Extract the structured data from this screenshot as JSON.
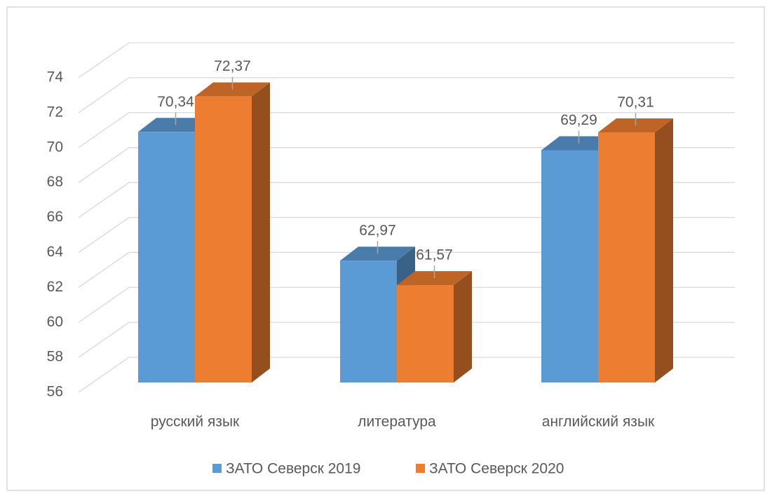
{
  "chart_data": {
    "type": "bar3d",
    "categories": [
      "русский язык",
      "литература",
      "английский язык"
    ],
    "series": [
      {
        "name": "ЗАТО Северск 2019",
        "color": "#5b9bd5",
        "values": [
          70.34,
          62.97,
          69.29
        ],
        "value_labels": [
          "70,34",
          "62,97",
          "69,29"
        ]
      },
      {
        "name": "ЗАТО Северск 2020",
        "color": "#ed7d31",
        "values": [
          72.37,
          61.57,
          70.31
        ],
        "value_labels": [
          "72,37",
          "61,57",
          "70,31"
        ]
      }
    ],
    "ylim": [
      56,
      74
    ],
    "yticks": [
      56,
      58,
      60,
      62,
      64,
      66,
      68,
      70,
      72,
      74
    ],
    "grid": true,
    "legend": "bottom"
  }
}
